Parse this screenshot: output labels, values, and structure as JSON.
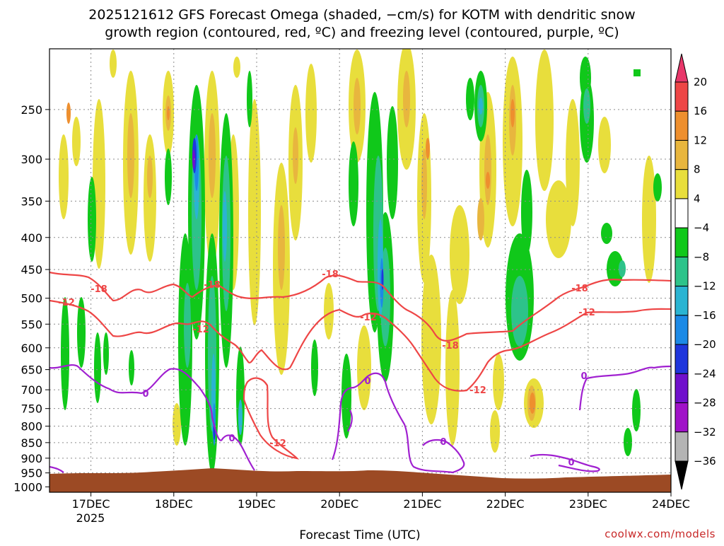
{
  "chart_data": {
    "type": "heatmap",
    "title_line1": "2025121612 GFS Forecast Omega (shaded, −cm/s) for KOTM with dendritic snow",
    "title_line2": "growth region (contoured, red, ºC) and freezing level (contoured, purple, ºC)",
    "xlabel": "Forecast Time (UTC)",
    "ylabel": "",
    "credit": "coolwx.com/models",
    "x_ticks": [
      "17DEC",
      "18DEC",
      "19DEC",
      "20DEC",
      "21DEC",
      "22DEC",
      "23DEC",
      "24DEC"
    ],
    "x_sublabel": "2025",
    "y_ticks": [
      "250",
      "300",
      "350",
      "400",
      "450",
      "500",
      "550",
      "600",
      "650",
      "700",
      "750",
      "800",
      "850",
      "900",
      "950",
      "1000"
    ],
    "y_values": [
      250,
      300,
      350,
      400,
      450,
      500,
      550,
      600,
      650,
      700,
      750,
      800,
      850,
      900,
      950,
      1000
    ],
    "y_scale": "log",
    "y_inverted": true,
    "x_range_days": [
      16.5,
      24.0
    ],
    "y_range_hpa": [
      200,
      1020
    ],
    "grid": true,
    "colorbar": {
      "labels": [
        "20",
        "16",
        "12",
        "8",
        "4",
        "−4",
        "−8",
        "−12",
        "−16",
        "−20",
        "−24",
        "−28",
        "−32",
        "−36"
      ],
      "colors": [
        "#e8376a",
        "#ee4646",
        "#ee8f2e",
        "#e8b63e",
        "#e8de3c",
        "#ffffff",
        "#10c81a",
        "#2dc38a",
        "#2ab4d2",
        "#1c8ae6",
        "#1f36dc",
        "#7010cc",
        "#a012c8",
        "#b4b4b4",
        "#000000"
      ]
    },
    "contour_labels": {
      "dgz_upper": "-18",
      "dgz_lower": "-12",
      "freezing": "0"
    },
    "contour_colors": {
      "dgz": "#ee4646",
      "freezing": "#a020d0",
      "terrain": "#9c4a24"
    }
  }
}
